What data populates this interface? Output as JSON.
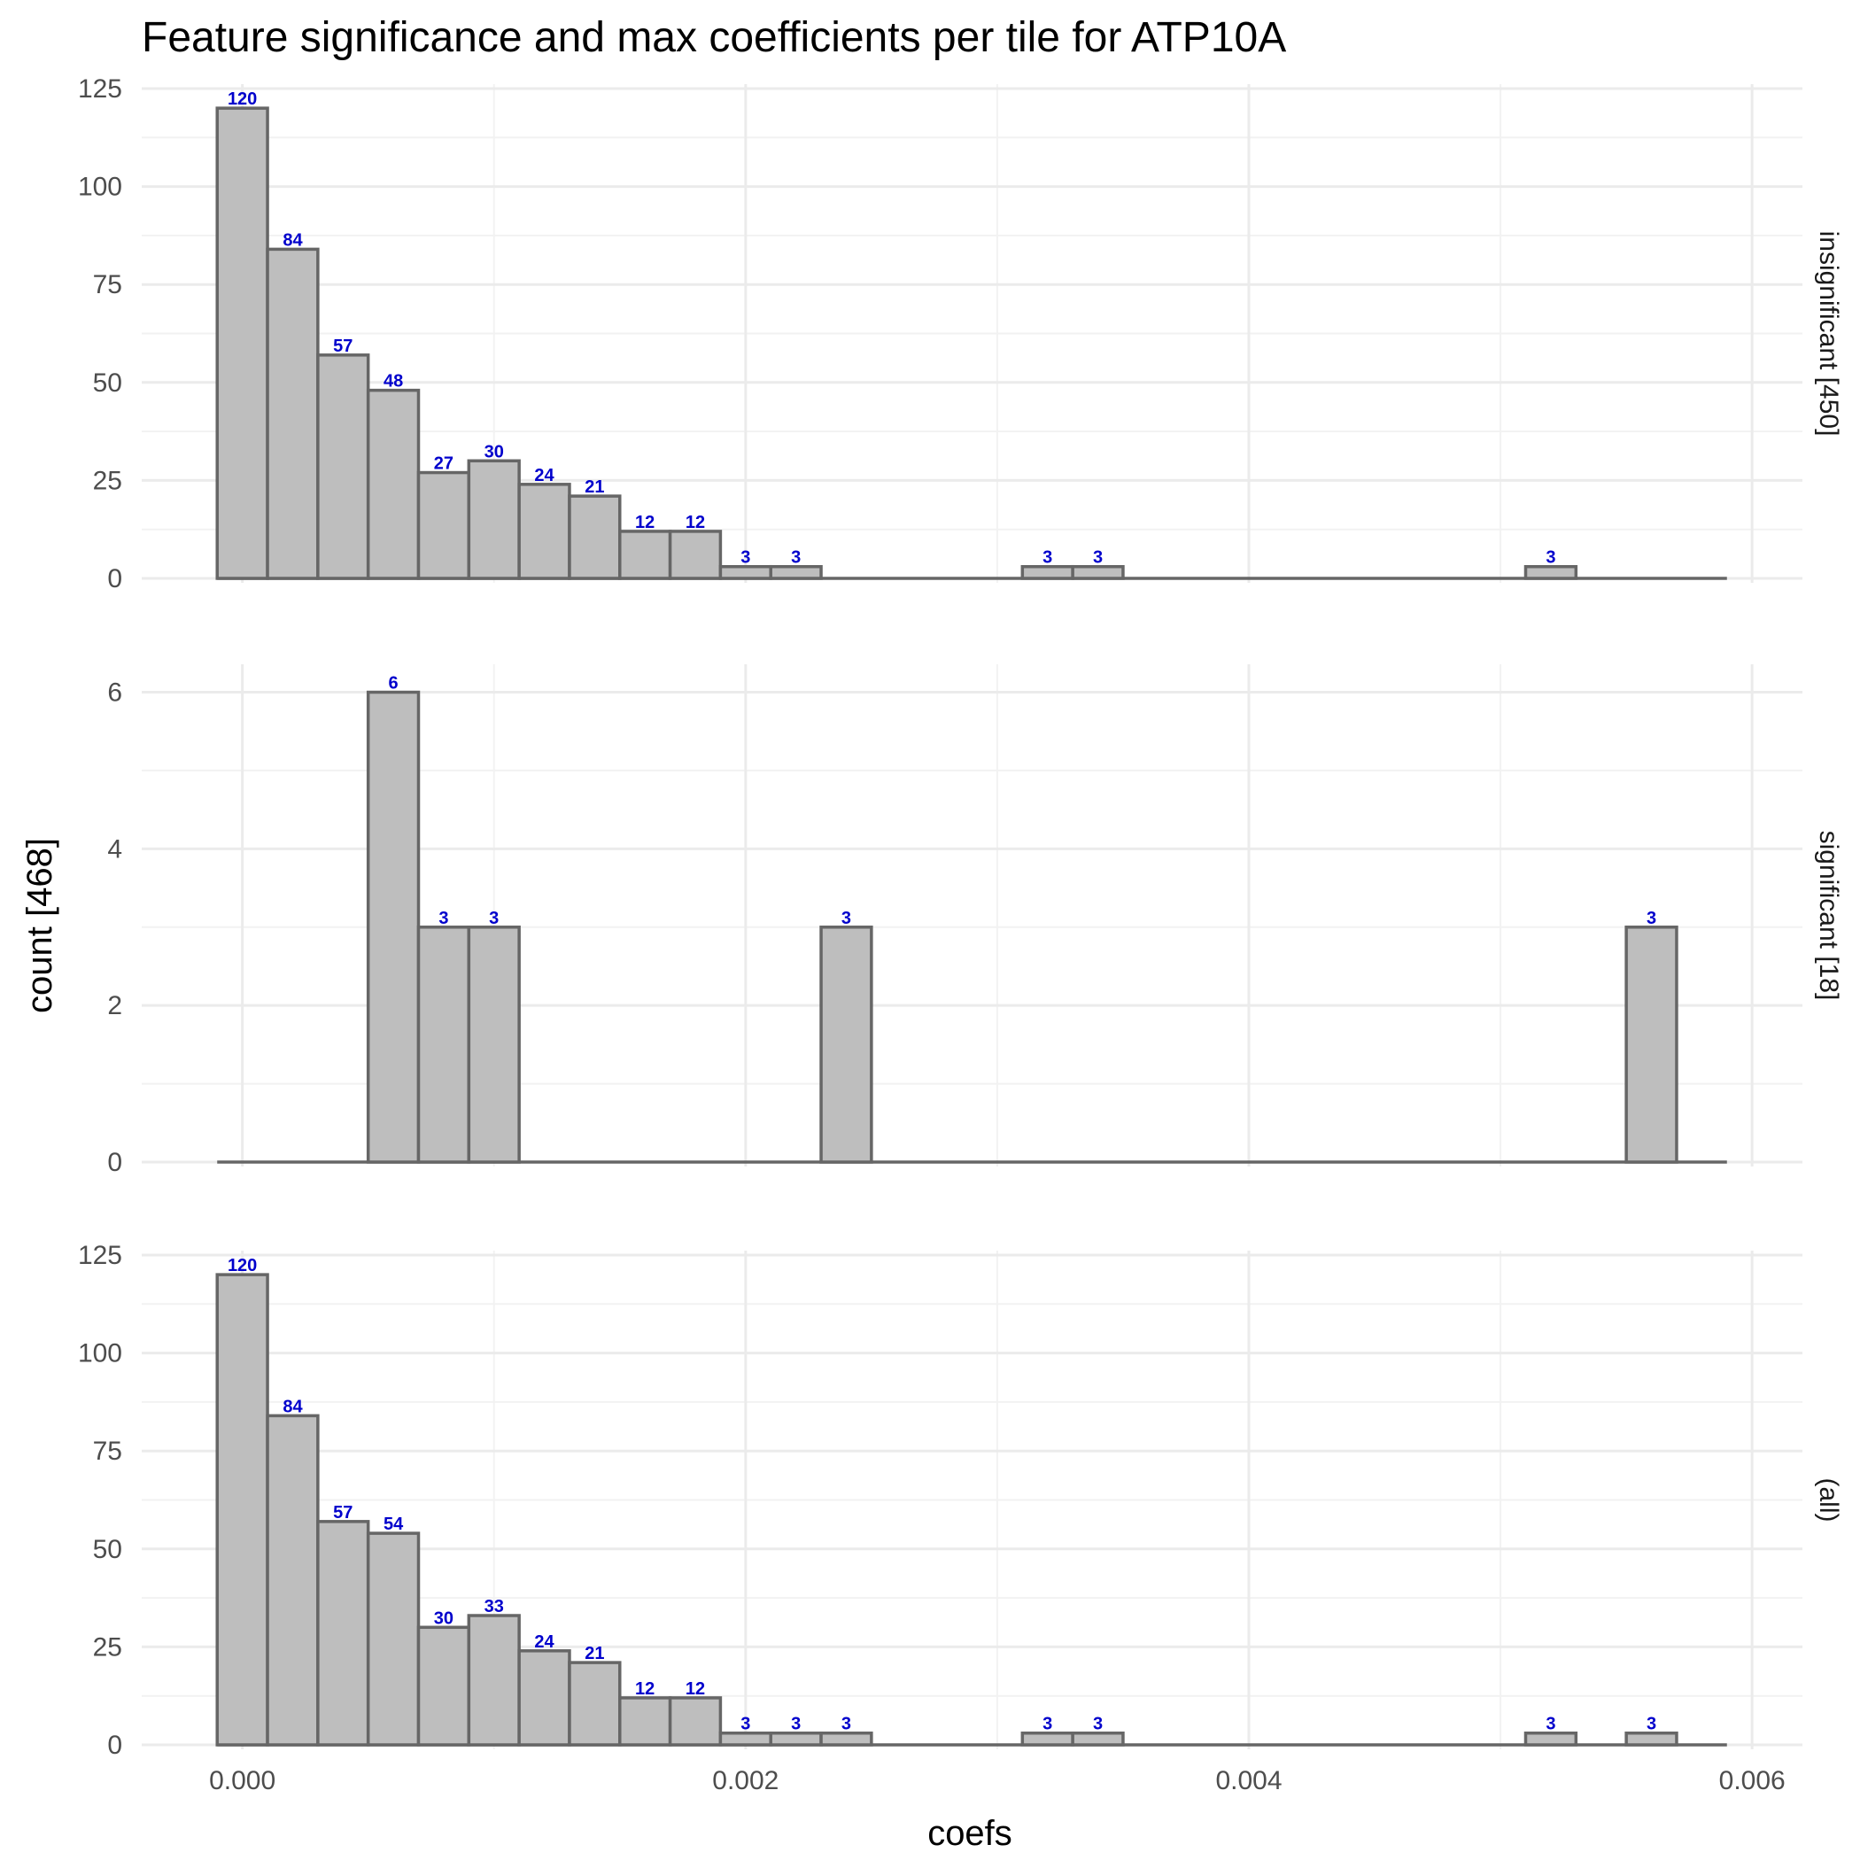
{
  "chart_data": {
    "type": "bar",
    "title": "Feature significance and max coefficients per tile for ATP10A",
    "xlabel": "coefs",
    "ylabel": "count [468]",
    "xlim": [
      -0.0004,
      0.0062
    ],
    "x_ticks": [
      "0.000",
      "0.002",
      "0.004",
      "0.006"
    ],
    "x_tick_values": [
      0.0,
      0.002,
      0.004,
      0.006
    ],
    "bin_width": 0.0002,
    "bin_start": -0.0001,
    "grid": true,
    "panels": [
      {
        "strip": "insignificant [450]",
        "ylim": [
          0,
          125
        ],
        "y_ticks": [
          "0",
          "25",
          "50",
          "75",
          "100",
          "125"
        ],
        "y_tick_values": [
          0,
          25,
          50,
          75,
          100,
          125
        ],
        "counts": [
          120,
          84,
          57,
          48,
          27,
          30,
          24,
          21,
          12,
          12,
          3,
          3,
          0,
          0,
          0,
          0,
          3,
          3,
          0,
          0,
          0,
          0,
          0,
          0,
          0,
          0,
          3,
          0,
          0,
          0
        ]
      },
      {
        "strip": "significant [18]",
        "ylim": [
          0,
          6.3
        ],
        "y_ticks": [
          "0",
          "2",
          "4",
          "6"
        ],
        "y_tick_values": [
          0,
          2,
          4,
          6
        ],
        "counts": [
          0,
          0,
          0,
          6,
          3,
          3,
          0,
          0,
          0,
          0,
          0,
          0,
          3,
          0,
          0,
          0,
          0,
          0,
          0,
          0,
          0,
          0,
          0,
          0,
          0,
          0,
          0,
          0,
          3,
          0
        ]
      },
      {
        "strip": "(all)",
        "ylim": [
          0,
          125
        ],
        "y_ticks": [
          "0",
          "25",
          "50",
          "75",
          "100",
          "125"
        ],
        "y_tick_values": [
          0,
          25,
          50,
          75,
          100,
          125
        ],
        "counts": [
          120,
          84,
          57,
          54,
          30,
          33,
          24,
          21,
          12,
          12,
          3,
          3,
          3,
          0,
          0,
          0,
          3,
          3,
          0,
          0,
          0,
          0,
          0,
          0,
          0,
          0,
          3,
          0,
          3,
          0
        ]
      }
    ]
  },
  "colors": {
    "bar_fill": "#bebebe",
    "bar_outline": "#666666",
    "label": "#0000cc",
    "grid": "#ebebeb"
  }
}
